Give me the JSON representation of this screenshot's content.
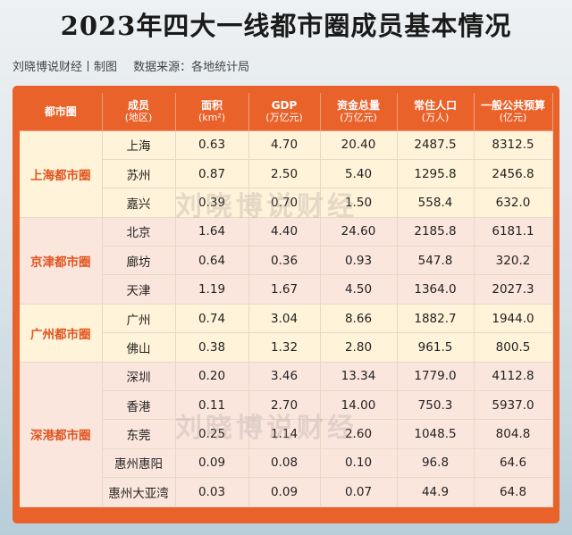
{
  "title": "2023年四大一线都市圈成员基本情况",
  "subtitle": {
    "author": "刘晓博说财经丨制图",
    "source": "数据来源：各地统计局"
  },
  "watermark": "刘晓博说财经",
  "header": {
    "metro": "都市圈",
    "member": "成员",
    "member_sub": "(地区)",
    "area": "面积",
    "area_sub": "(km²)",
    "gdp": "GDP",
    "gdp_sub": "(万亿元)",
    "capital": "资金总量",
    "capital_sub": "(万亿元)",
    "population": "常住人口",
    "population_sub": "(万人)",
    "budget": "一般公共预算",
    "budget_sub": "(亿元)"
  },
  "groups": [
    {
      "name": "上海都市圈",
      "rows": [
        {
          "member": "上海",
          "area": "0.63",
          "gdp": "4.70",
          "capital": "20.40",
          "population": "2487.5",
          "budget": "8312.5"
        },
        {
          "member": "苏州",
          "area": "0.87",
          "gdp": "2.50",
          "capital": "5.40",
          "population": "1295.8",
          "budget": "2456.8"
        },
        {
          "member": "嘉兴",
          "area": "0.39",
          "gdp": "0.70",
          "capital": "1.50",
          "population": "558.4",
          "budget": "632.0"
        }
      ]
    },
    {
      "name": "京津都市圈",
      "rows": [
        {
          "member": "北京",
          "area": "1.64",
          "gdp": "4.40",
          "capital": "24.60",
          "population": "2185.8",
          "budget": "6181.1"
        },
        {
          "member": "廊坊",
          "area": "0.64",
          "gdp": "0.36",
          "capital": "0.93",
          "population": "547.8",
          "budget": "320.2"
        },
        {
          "member": "天津",
          "area": "1.19",
          "gdp": "1.67",
          "capital": "4.50",
          "population": "1364.0",
          "budget": "2027.3"
        }
      ]
    },
    {
      "name": "广州都市圈",
      "rows": [
        {
          "member": "广州",
          "area": "0.74",
          "gdp": "3.04",
          "capital": "8.66",
          "population": "1882.7",
          "budget": "1944.0"
        },
        {
          "member": "佛山",
          "area": "0.38",
          "gdp": "1.32",
          "capital": "2.80",
          "population": "961.5",
          "budget": "800.5"
        }
      ]
    },
    {
      "name": "深港都市圈",
      "rows": [
        {
          "member": "深圳",
          "area": "0.20",
          "gdp": "3.46",
          "capital": "13.34",
          "population": "1779.0",
          "budget": "4112.8"
        },
        {
          "member": "香港",
          "area": "0.11",
          "gdp": "2.70",
          "capital": "14.00",
          "population": "750.3",
          "budget": "5937.0"
        },
        {
          "member": "东莞",
          "area": "0.25",
          "gdp": "1.14",
          "capital": "2.60",
          "population": "1048.5",
          "budget": "804.8"
        },
        {
          "member": "惠州惠阳",
          "area": "0.09",
          "gdp": "0.08",
          "capital": "0.10",
          "population": "96.8",
          "budget": "64.6"
        },
        {
          "member": "惠州大亚湾",
          "area": "0.03",
          "gdp": "0.09",
          "capital": "0.07",
          "population": "44.9",
          "budget": "64.8"
        }
      ]
    }
  ]
}
